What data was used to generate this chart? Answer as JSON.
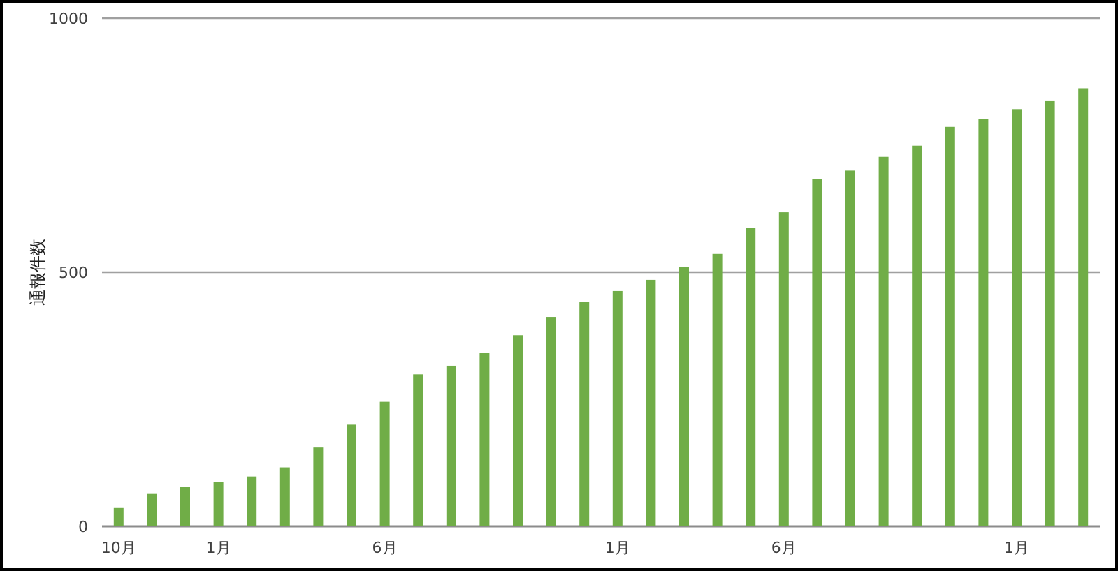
{
  "chart_data": {
    "type": "bar",
    "ylabel": "通報件数",
    "categories": [
      "10月",
      null,
      null,
      "1月",
      null,
      null,
      null,
      null,
      "6月",
      null,
      null,
      null,
      null,
      null,
      null,
      "1月",
      null,
      null,
      null,
      null,
      "6月",
      null,
      null,
      null,
      null,
      null,
      null,
      "1月",
      null,
      null
    ],
    "values": [
      36,
      65,
      77,
      87,
      98,
      116,
      155,
      200,
      245,
      299,
      316,
      341,
      376,
      412,
      442,
      463,
      485,
      511,
      536,
      587,
      618,
      683,
      700,
      727,
      749,
      786,
      802,
      821,
      838,
      862
    ],
    "color": "#70ad47",
    "ylim": [
      0,
      1000
    ],
    "yticks": [
      0,
      500,
      1000
    ],
    "grid": "y"
  }
}
